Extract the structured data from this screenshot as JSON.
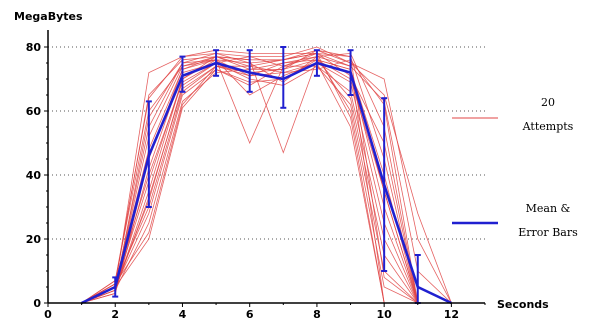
{
  "chart_data": {
    "type": "line",
    "xlabel": "Seconds",
    "ylabel": "MegaBytes",
    "xlim": [
      0,
      13
    ],
    "ylim": [
      0,
      80
    ],
    "xticks": [
      0,
      2,
      4,
      6,
      8,
      10,
      12
    ],
    "yticks": [
      0,
      20,
      40,
      60,
      80
    ],
    "grid": "horizontal dotted",
    "legend_placement": "right",
    "colors": {
      "attempts": "#e04545",
      "mean": "#2020d0"
    },
    "series": [
      {
        "name": "20 Attempts",
        "color": "#e04545",
        "lines": [
          {
            "x": [
              1,
              2,
              3,
              4,
              5,
              6,
              7,
              8,
              9,
              10,
              11,
              12
            ],
            "y": [
              0,
              5,
              72,
              77,
              78,
              77,
              77,
              80,
              75,
              70,
              20,
              0
            ]
          },
          {
            "x": [
              1,
              2,
              3,
              4,
              5,
              6,
              7,
              8,
              9,
              10,
              11,
              12
            ],
            "y": [
              0,
              6,
              65,
              76,
              77,
              76,
              76,
              78,
              74,
              63,
              10,
              0
            ]
          },
          {
            "x": [
              1,
              2,
              3,
              4,
              5,
              6,
              7,
              8,
              9,
              10,
              11,
              12
            ],
            "y": [
              0,
              4,
              58,
              75,
              76,
              75,
              76,
              79,
              75,
              65,
              28,
              0
            ]
          },
          {
            "x": [
              1,
              2,
              3,
              4,
              5,
              6,
              7,
              8,
              9,
              10,
              11,
              12
            ],
            "y": [
              0,
              7,
              64,
              77,
              79,
              78,
              78,
              78,
              77,
              8,
              0,
              0
            ]
          },
          {
            "x": [
              1,
              2,
              3,
              4,
              5,
              6,
              7,
              8,
              9,
              10,
              11,
              12
            ],
            "y": [
              0,
              5,
              52,
              74,
              76,
              50,
              74,
              77,
              74,
              0,
              0,
              0
            ]
          },
          {
            "x": [
              1,
              2,
              3,
              4,
              5,
              6,
              7,
              8,
              9,
              10,
              11,
              12
            ],
            "y": [
              0,
              6,
              48,
              73,
              77,
              76,
              47,
              76,
              73,
              40,
              0,
              0
            ]
          },
          {
            "x": [
              1,
              2,
              3,
              4,
              5,
              6,
              7,
              8,
              9,
              10,
              11,
              12
            ],
            "y": [
              0,
              3,
              42,
              72,
              75,
              72,
              70,
              76,
              73,
              35,
              0,
              0
            ]
          },
          {
            "x": [
              1,
              2,
              3,
              4,
              5,
              6,
              7,
              8,
              9,
              10,
              11,
              12
            ],
            "y": [
              0,
              5,
              38,
              70,
              77,
              74,
              72,
              75,
              72,
              30,
              0,
              0
            ]
          },
          {
            "x": [
              1,
              2,
              3,
              4,
              5,
              6,
              7,
              8,
              9,
              10,
              11,
              12
            ],
            "y": [
              0,
              4,
              35,
              70,
              76,
              65,
              71,
              75,
              69,
              25,
              0,
              0
            ]
          },
          {
            "x": [
              1,
              2,
              3,
              4,
              5,
              6,
              7,
              8,
              9,
              10,
              11,
              12
            ],
            "y": [
              0,
              5,
              32,
              68,
              75,
              70,
              68,
              74,
              66,
              20,
              0,
              0
            ]
          },
          {
            "x": [
              1,
              2,
              3,
              4,
              5,
              6,
              7,
              8,
              9,
              10,
              11,
              12
            ],
            "y": [
              0,
              6,
              30,
              66,
              74,
              72,
              73,
              76,
              64,
              15,
              0,
              0
            ]
          },
          {
            "x": [
              1,
              2,
              3,
              4,
              5,
              6,
              7,
              8,
              9,
              10,
              11,
              12
            ],
            "y": [
              0,
              5,
              28,
              65,
              73,
              68,
              74,
              74,
              62,
              10,
              0,
              0
            ]
          },
          {
            "x": [
              1,
              2,
              3,
              4,
              5,
              6,
              7,
              8,
              9,
              10,
              11,
              12
            ],
            "y": [
              0,
              4,
              25,
              63,
              72,
              73,
              75,
              77,
              60,
              5,
              0,
              0
            ]
          },
          {
            "x": [
              1,
              2,
              3,
              4,
              5,
              6,
              7,
              8,
              9,
              10,
              11,
              12
            ],
            "y": [
              0,
              6,
              22,
              62,
              74,
              74,
              76,
              78,
              58,
              0,
              0,
              0
            ]
          },
          {
            "x": [
              1,
              2,
              3,
              4,
              5,
              6,
              7,
              8,
              9,
              10,
              11,
              12
            ],
            "y": [
              0,
              5,
              20,
              61,
              73,
              69,
              70,
              75,
              55,
              0,
              0,
              0
            ]
          },
          {
            "x": [
              1,
              2,
              3,
              4,
              5,
              6,
              7,
              8,
              9,
              10,
              11,
              12
            ],
            "y": [
              0,
              3,
              45,
              73,
              76,
              71,
              72,
              73,
              76,
              62,
              0,
              0
            ]
          },
          {
            "x": [
              1,
              2,
              3,
              4,
              5,
              6,
              7,
              8,
              9,
              10,
              11,
              12
            ],
            "y": [
              0,
              5,
              55,
              75,
              78,
              75,
              69,
              77,
              78,
              55,
              0,
              0
            ]
          },
          {
            "x": [
              1,
              2,
              3,
              4,
              5,
              6,
              7,
              8,
              9,
              10,
              11,
              12
            ],
            "y": [
              0,
              7,
              60,
              74,
              77,
              73,
              73,
              79,
              77,
              45,
              0,
              0
            ]
          },
          {
            "x": [
              1,
              2,
              3,
              4,
              5,
              6,
              7,
              8,
              9,
              10,
              11,
              12
            ],
            "y": [
              0,
              6,
              40,
              69,
              75,
              77,
              74,
              78,
              71,
              50,
              0,
              0
            ]
          },
          {
            "x": [
              1,
              2,
              3,
              4,
              5,
              6,
              7,
              8,
              9,
              10,
              11,
              12
            ],
            "y": [
              0,
              4,
              33,
              67,
              74,
              71,
              75,
              76,
              70,
              35,
              0,
              0
            ]
          }
        ]
      },
      {
        "name": "Mean & Error Bars",
        "color": "#2020d0",
        "x": [
          1,
          2,
          3,
          4,
          5,
          6,
          7,
          8,
          9,
          10,
          11,
          12
        ],
        "y": [
          0,
          5,
          46,
          71,
          75,
          72,
          70,
          75,
          72,
          37,
          5,
          0
        ],
        "error_low": [
          0,
          2,
          30,
          66,
          71,
          66,
          61,
          71,
          65,
          10,
          0,
          0
        ],
        "error_high": [
          0,
          8,
          63,
          77,
          79,
          79,
          80,
          79,
          79,
          64,
          15,
          0
        ]
      }
    ],
    "legend": [
      {
        "label_lines": [
          "20",
          "Attempts"
        ],
        "color": "#e04545"
      },
      {
        "label_lines": [
          "Mean &",
          "Error Bars"
        ],
        "color": "#2020d0"
      }
    ]
  }
}
